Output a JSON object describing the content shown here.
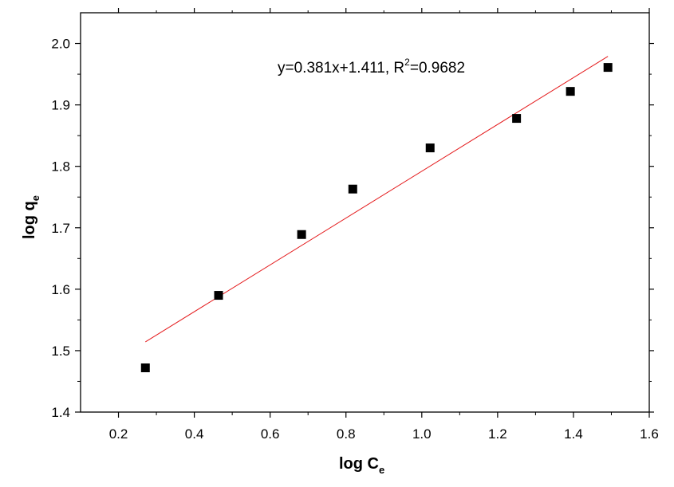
{
  "chart_data": {
    "type": "scatter",
    "xlabel": {
      "main": "log C",
      "sub": "e"
    },
    "ylabel": {
      "main": "log q",
      "sub": "e"
    },
    "xlim": [
      0.1,
      1.6
    ],
    "ylim": [
      1.4,
      2.05
    ],
    "xticks": [
      0.2,
      0.4,
      0.6,
      0.8,
      1.0,
      1.2,
      1.4,
      1.6
    ],
    "xtick_labels": [
      "0.2",
      "0.4",
      "0.6",
      "0.8",
      "1.0",
      "1.2",
      "1.4",
      "1.6"
    ],
    "yticks": [
      1.4,
      1.5,
      1.6,
      1.7,
      1.8,
      1.9,
      2.0
    ],
    "ytick_labels": [
      "1.4",
      "1.5",
      "1.6",
      "1.7",
      "1.8",
      "1.9",
      "2.0"
    ],
    "grid": false,
    "series": [
      {
        "marker": "square",
        "color": "#000000",
        "x": [
          0.271,
          0.464,
          0.683,
          0.818,
          1.022,
          1.25,
          1.392,
          1.491
        ],
        "y": [
          1.472,
          1.59,
          1.689,
          1.763,
          1.83,
          1.878,
          1.922,
          1.961
        ]
      }
    ],
    "fit_line": {
      "color": "#e41a1c",
      "slope": 0.381,
      "intercept": 1.411,
      "x_range": [
        0.271,
        1.491
      ]
    },
    "annotation": {
      "prefix": "y=0.381x+1.411, R",
      "sup": "2",
      "suffix": "=0.9682"
    }
  }
}
